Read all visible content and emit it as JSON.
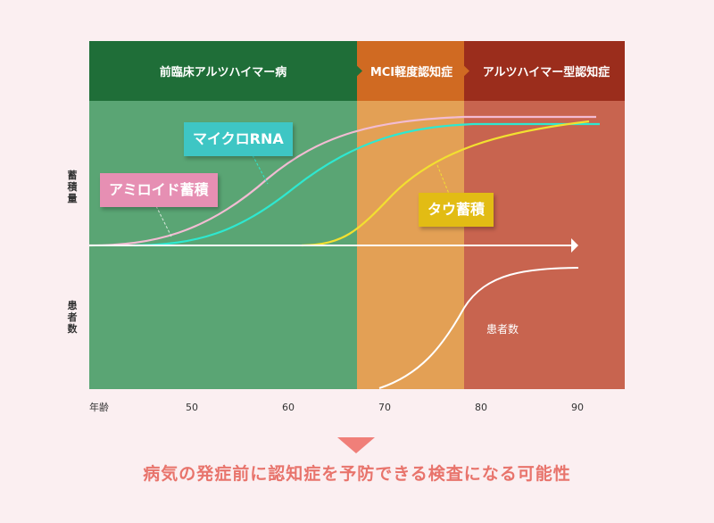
{
  "phases": [
    {
      "label": "前臨床アルツハイマー病"
    },
    {
      "label": "MCI軽度認知症"
    },
    {
      "label": "アルツハイマー型認知症"
    }
  ],
  "y_labels": {
    "accumulation": "蓄積量",
    "patients": "患者数"
  },
  "x_axis": {
    "label": "年齢",
    "ticks": [
      "50",
      "60",
      "70",
      "80",
      "90"
    ]
  },
  "tags": {
    "microrna": "マイクロRNA",
    "amyloid": "アミロイド蓄積",
    "tau": "タウ蓄積"
  },
  "patients_curve_label": "患者数",
  "message": "病気の発症前に認知症を予防できる検査になる可能性",
  "colors": {
    "phase1_header": "#1f6e38",
    "phase1_body": "#5aa574",
    "phase2_header": "#d06a22",
    "phase2_body": "#e3a055",
    "phase3_header": "#9b2d1c",
    "phase3_body": "#c8644f",
    "amyloid": "#e68fb3",
    "microrna": "#3ec6c4",
    "tau": "#e7c41e",
    "message": "#e8746c"
  }
}
